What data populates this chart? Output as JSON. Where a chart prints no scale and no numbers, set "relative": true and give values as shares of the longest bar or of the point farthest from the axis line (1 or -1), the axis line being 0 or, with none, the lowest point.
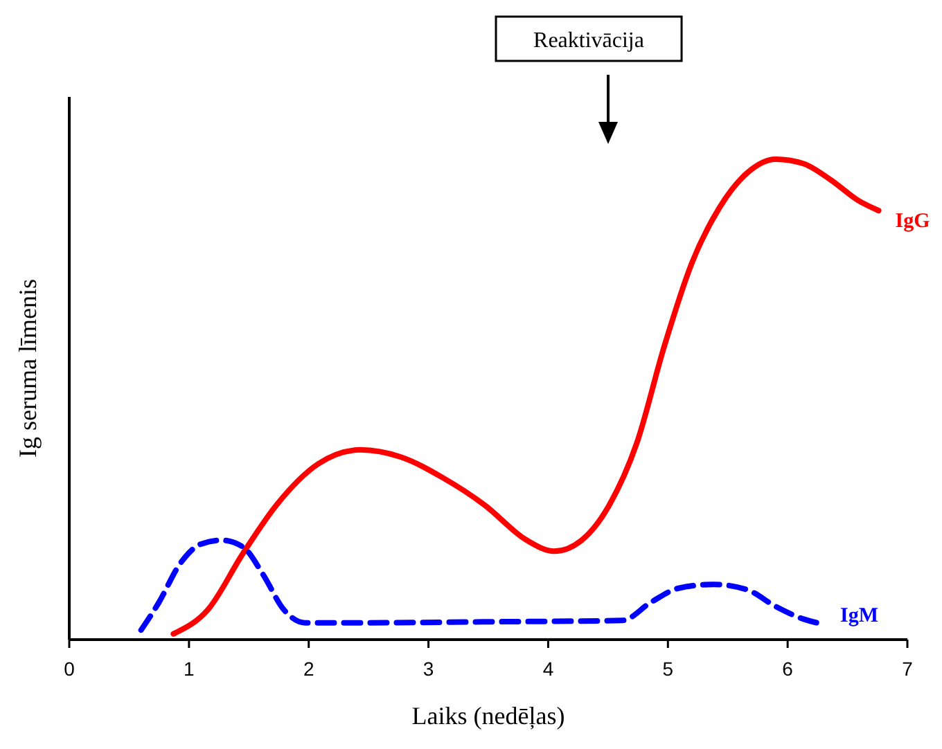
{
  "chart_data": {
    "type": "line",
    "relative": true,
    "xlabel": "Laiks (nedēļas)",
    "ylabel": "Ig seruma līmenis",
    "xlim": [
      0,
      7
    ],
    "xticks": [
      0,
      1,
      2,
      3,
      4,
      5,
      6,
      7
    ],
    "legend": false,
    "annotations": [
      "Reaktivācija"
    ],
    "series": [
      {
        "name": "IgG",
        "color": "#ff0000",
        "line_style": "solid",
        "x": [
          0.87,
          1.16,
          1.45,
          1.73,
          2.08,
          2.43,
          2.77,
          3.12,
          3.47,
          3.82,
          4.05,
          4.28,
          4.51,
          4.74,
          4.97,
          5.2,
          5.43,
          5.66,
          5.9,
          6.13,
          6.36,
          6.59,
          6.76
        ],
        "values": [
          0.012,
          0.063,
          0.179,
          0.28,
          0.366,
          0.395,
          0.38,
          0.337,
          0.28,
          0.207,
          0.184,
          0.207,
          0.28,
          0.409,
          0.611,
          0.784,
          0.899,
          0.971,
          1,
          0.991,
          0.957,
          0.914,
          0.893
        ]
      },
      {
        "name": "IgM",
        "color": "#0000ff",
        "line_style": "dashed",
        "x": [
          0.6,
          0.75,
          0.92,
          1.1,
          1.27,
          1.45,
          1.62,
          1.79,
          1.97,
          2.43,
          3.47,
          4.62,
          4.86,
          5.09,
          5.38,
          5.66,
          5.9,
          6.13,
          6.3
        ],
        "values": [
          0.02,
          0.078,
          0.156,
          0.199,
          0.207,
          0.193,
          0.135,
          0.063,
          0.035,
          0.035,
          0.037,
          0.04,
          0.078,
          0.107,
          0.115,
          0.104,
          0.069,
          0.043,
          0.032
        ]
      }
    ]
  }
}
